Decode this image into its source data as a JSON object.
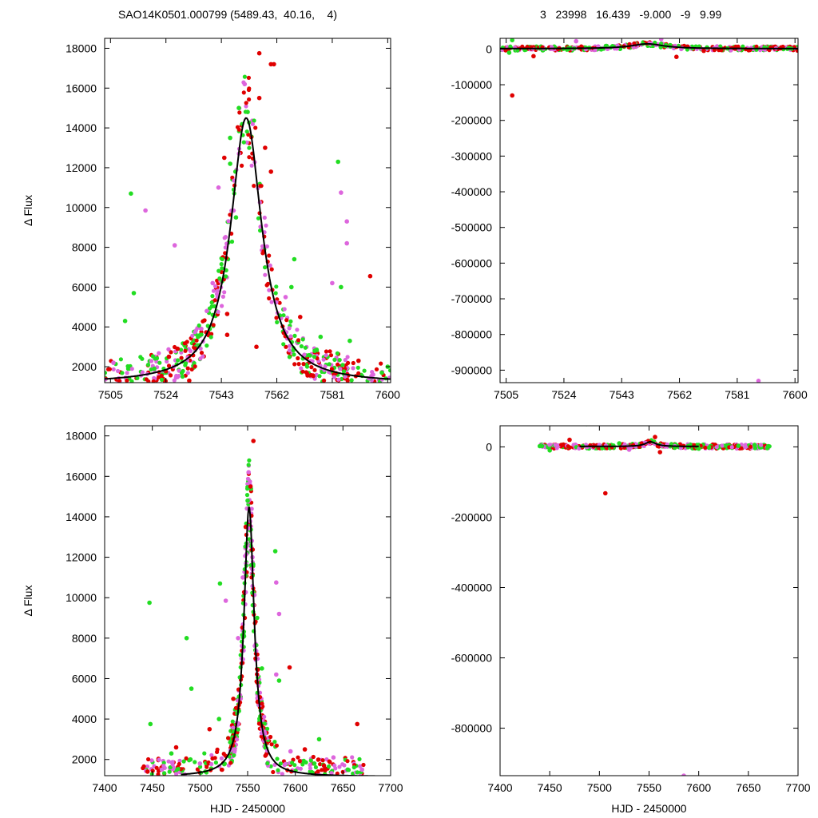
{
  "figure": {
    "title_left": "SAO14K0501.000799 (5489.43,  40.16,    4)",
    "title_right": "3   23998   16.439   -9.000   -9   9.99"
  },
  "colors": {
    "model": "#000000",
    "series_red": "#e00000",
    "series_magenta": "#dd66dd",
    "series_green": "#22dd22",
    "axis": "#000000"
  },
  "chart_data": [
    {
      "id": "top-left",
      "type": "scatter",
      "title": "",
      "xlabel": "",
      "ylabel": "Δ Flux",
      "xlim": [
        7503,
        7601
      ],
      "ylim": [
        1200,
        18500
      ],
      "xticks": [
        7505,
        7524,
        7543,
        7562,
        7581,
        7600
      ],
      "yticks": [
        2000,
        4000,
        6000,
        8000,
        10000,
        12000,
        14000,
        16000,
        18000
      ],
      "model": {
        "peak_x": 7551.5,
        "peak_y": 14500,
        "base_y": 1150,
        "width": 6.5
      },
      "points": [
        [
          7512,
          10700,
          "green"
        ],
        [
          7517,
          9850,
          "magenta"
        ],
        [
          7513,
          5700,
          "green"
        ],
        [
          7510,
          4300,
          "green"
        ],
        [
          7527,
          8100,
          "magenta"
        ],
        [
          7583,
          12300,
          "green"
        ],
        [
          7584,
          10750,
          "magenta"
        ],
        [
          7586,
          9300,
          "magenta"
        ],
        [
          7586,
          8200,
          "magenta"
        ],
        [
          7594,
          6550,
          "red"
        ],
        [
          7581,
          6200,
          "magenta"
        ],
        [
          7584,
          6000,
          "green"
        ],
        [
          7568,
          7400,
          "green"
        ],
        [
          7545,
          4650,
          "red"
        ],
        [
          7545,
          3600,
          "red"
        ],
        [
          7555,
          3000,
          "red"
        ],
        [
          7528,
          2900,
          "red"
        ],
        [
          7532,
          1300,
          "red"
        ],
        [
          7556,
          17750,
          "red"
        ],
        [
          7560,
          17200,
          "red"
        ],
        [
          7561,
          17200,
          "red"
        ],
        [
          7551,
          16200,
          "magenta"
        ],
        [
          7549,
          15000,
          "green"
        ],
        [
          7552,
          14800,
          "green"
        ],
        [
          7556,
          15500,
          "red"
        ],
        [
          7546,
          13500,
          "green"
        ],
        [
          7544,
          12500,
          "red"
        ],
        [
          7558,
          13000,
          "red"
        ],
        [
          7546,
          12200,
          "green"
        ],
        [
          7560,
          11800,
          "red"
        ],
        [
          7542,
          11000,
          "magenta"
        ],
        [
          7548,
          9500,
          "green"
        ],
        [
          7567,
          6000,
          "green"
        ],
        [
          7570,
          4500,
          "red"
        ],
        [
          7577,
          3500,
          "green"
        ],
        [
          7587,
          3300,
          "green"
        ],
        [
          7590,
          2300,
          "red"
        ],
        [
          7598,
          1700,
          "green"
        ],
        [
          7506,
          2200,
          "magenta"
        ],
        [
          7520,
          1900,
          "green"
        ],
        [
          7525,
          2500,
          "red"
        ],
        [
          7535,
          3500,
          "green"
        ],
        [
          7538,
          4800,
          "magenta"
        ],
        [
          7540,
          6200,
          "magenta"
        ],
        [
          7565,
          5500,
          "magenta"
        ],
        [
          7575,
          2800,
          "green"
        ],
        [
          7595,
          1600,
          "magenta"
        ],
        [
          7600,
          2000,
          "green"
        ]
      ]
    },
    {
      "id": "top-right",
      "type": "scatter",
      "title": "",
      "xlabel": "",
      "ylabel": "",
      "xlim": [
        7503,
        7601
      ],
      "ylim": [
        -935000,
        30000
      ],
      "xticks": [
        7505,
        7524,
        7543,
        7562,
        7581,
        7600
      ],
      "yticks": [
        0,
        -100000,
        -200000,
        -300000,
        -400000,
        -500000,
        -600000,
        -700000,
        -800000,
        -900000
      ],
      "model": {
        "peak_x": 7551.5,
        "peak_y": 14500,
        "base_y": 1150,
        "width": 6.5
      },
      "points": [
        [
          7507,
          -130000,
          "red"
        ],
        [
          7507,
          25000,
          "green"
        ],
        [
          7506,
          -10000,
          "green"
        ],
        [
          7514,
          -20000,
          "red"
        ],
        [
          7528,
          22000,
          "magenta"
        ],
        [
          7540,
          8000,
          "green"
        ],
        [
          7550,
          15000,
          "green"
        ],
        [
          7556,
          28000,
          "magenta"
        ],
        [
          7561,
          -22000,
          "red"
        ],
        [
          7570,
          -5000,
          "red"
        ],
        [
          7588,
          -930000,
          "magenta"
        ],
        [
          7590,
          5000,
          "green"
        ],
        [
          7598,
          3000,
          "green"
        ],
        [
          7520,
          5000,
          "magenta"
        ],
        [
          7580,
          2000,
          "red"
        ]
      ]
    },
    {
      "id": "bottom-left",
      "type": "scatter",
      "title": "",
      "xlabel": "HJD - 2450000",
      "ylabel": "Δ Flux",
      "xlim": [
        7400,
        7700
      ],
      "ylim": [
        1200,
        18500
      ],
      "xticks": [
        7400,
        7450,
        7500,
        7550,
        7600,
        7650,
        7700
      ],
      "yticks": [
        2000,
        4000,
        6000,
        8000,
        10000,
        12000,
        14000,
        16000,
        18000
      ],
      "model": {
        "peak_x": 7551.5,
        "peak_y": 14500,
        "base_y": 1150,
        "width": 6.5
      },
      "points": [
        [
          7447,
          9750,
          "green"
        ],
        [
          7486,
          8000,
          "green"
        ],
        [
          7521,
          10700,
          "green"
        ],
        [
          7527,
          9850,
          "magenta"
        ],
        [
          7491,
          5500,
          "green"
        ],
        [
          7579,
          12300,
          "green"
        ],
        [
          7580,
          10750,
          "magenta"
        ],
        [
          7583,
          9200,
          "magenta"
        ],
        [
          7580,
          6200,
          "magenta"
        ],
        [
          7583,
          5900,
          "green"
        ],
        [
          7594,
          6550,
          "red"
        ],
        [
          7665,
          3750,
          "red"
        ],
        [
          7448,
          3750,
          "green"
        ],
        [
          7556,
          17750,
          "red"
        ],
        [
          7551,
          16200,
          "magenta"
        ],
        [
          7553,
          15500,
          "red"
        ],
        [
          7550,
          14800,
          "green"
        ],
        [
          7548,
          13500,
          "red"
        ],
        [
          7555,
          12000,
          "magenta"
        ],
        [
          7545,
          11000,
          "magenta"
        ],
        [
          7560,
          9000,
          "green"
        ],
        [
          7540,
          8000,
          "magenta"
        ],
        [
          7565,
          6500,
          "green"
        ],
        [
          7535,
          5000,
          "red"
        ],
        [
          7475,
          2600,
          "red"
        ],
        [
          7490,
          2000,
          "green"
        ],
        [
          7500,
          1800,
          "magenta"
        ],
        [
          7610,
          2500,
          "red"
        ],
        [
          7620,
          1800,
          "green"
        ],
        [
          7640,
          2100,
          "magenta"
        ],
        [
          7655,
          1500,
          "green"
        ],
        [
          7460,
          1500,
          "magenta"
        ],
        [
          7470,
          2300,
          "green"
        ],
        [
          7595,
          2400,
          "magenta"
        ],
        [
          7625,
          3000,
          "green"
        ],
        [
          7510,
          3500,
          "red"
        ],
        [
          7630,
          1700,
          "red"
        ],
        [
          7445,
          1400,
          "red"
        ],
        [
          7670,
          1500,
          "magenta"
        ],
        [
          7520,
          4000,
          "green"
        ]
      ]
    },
    {
      "id": "bottom-right",
      "type": "scatter",
      "title": "",
      "xlabel": "HJD - 2450000",
      "ylabel": "",
      "xlim": [
        7400,
        7700
      ],
      "ylim": [
        -935000,
        60000
      ],
      "xticks": [
        7400,
        7450,
        7500,
        7550,
        7600,
        7650,
        7700
      ],
      "yticks": [
        0,
        -200000,
        -400000,
        -600000,
        -800000
      ],
      "model": {
        "peak_x": 7551.5,
        "peak_y": 14500,
        "base_y": 1150,
        "width": 6.5
      },
      "points": [
        [
          7487,
          65000,
          "green"
        ],
        [
          7506,
          -132000,
          "red"
        ],
        [
          7585,
          -935000,
          "magenta"
        ],
        [
          7470,
          20000,
          "red"
        ],
        [
          7520,
          10000,
          "green"
        ],
        [
          7556,
          28000,
          "red"
        ],
        [
          7561,
          -15000,
          "red"
        ],
        [
          7450,
          -10000,
          "green"
        ],
        [
          7500,
          5000,
          "magenta"
        ],
        [
          7600,
          -5000,
          "green"
        ],
        [
          7640,
          3000,
          "green"
        ],
        [
          7670,
          2000,
          "green"
        ],
        [
          7440,
          2000,
          "green"
        ],
        [
          7530,
          -8000,
          "magenta"
        ]
      ]
    }
  ]
}
